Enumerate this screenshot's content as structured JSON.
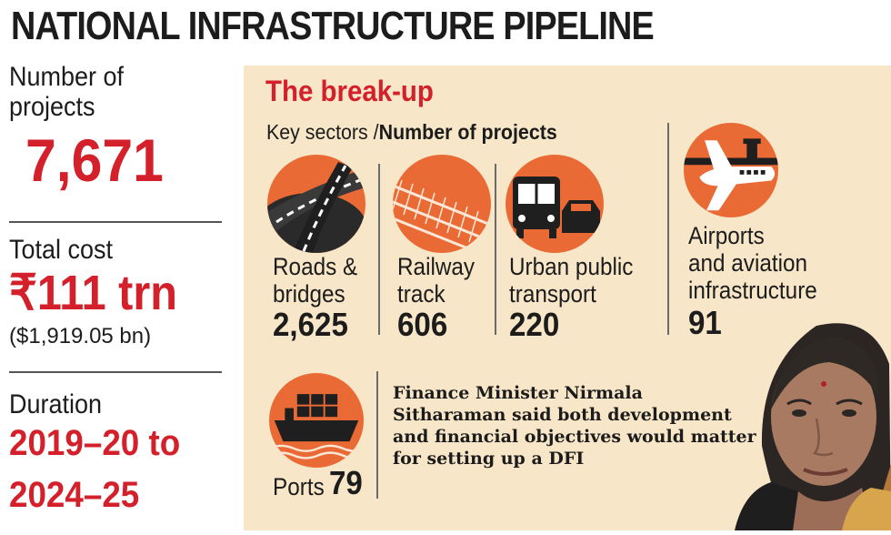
{
  "title": "NATIONAL INFRASTRUCTURE PIPELINE",
  "projects": {
    "label_line1": "Number of",
    "label_line2": "projects",
    "value": "7,671"
  },
  "cost": {
    "label": "Total cost",
    "value": "₹111 trn",
    "sub": "($1,919.05 bn)"
  },
  "duration": {
    "label": "Duration",
    "line1": "2019–20 to",
    "line2": "2024–25"
  },
  "breakup": {
    "title": "The break-up",
    "key_prefix": "Key sectors /",
    "key_bold": "Number of projects",
    "sectors": [
      {
        "icon": "road-icon",
        "line1": "Roads &",
        "line2": "bridges",
        "count": "2,625"
      },
      {
        "icon": "railway-icon",
        "line1": "Railway",
        "line2": "track",
        "count": "606"
      },
      {
        "icon": "bus-icon",
        "line1": "Urban public",
        "line2": "transport",
        "count": "220"
      },
      {
        "icon": "airplane-icon",
        "line1": "Airports",
        "line2": "and aviation",
        "line3": "infrastructure",
        "count": "91"
      },
      {
        "icon": "ship-icon",
        "line1": "Ports",
        "count": "79"
      }
    ]
  },
  "quote": "Finance Minister Nirmala Sitharaman said both development and financial objectives would matter for setting up a DFI",
  "colors": {
    "accent_red": "#d4202b",
    "icon_orange": "#ea6a35",
    "panel_bg": "#f8e6c8"
  }
}
